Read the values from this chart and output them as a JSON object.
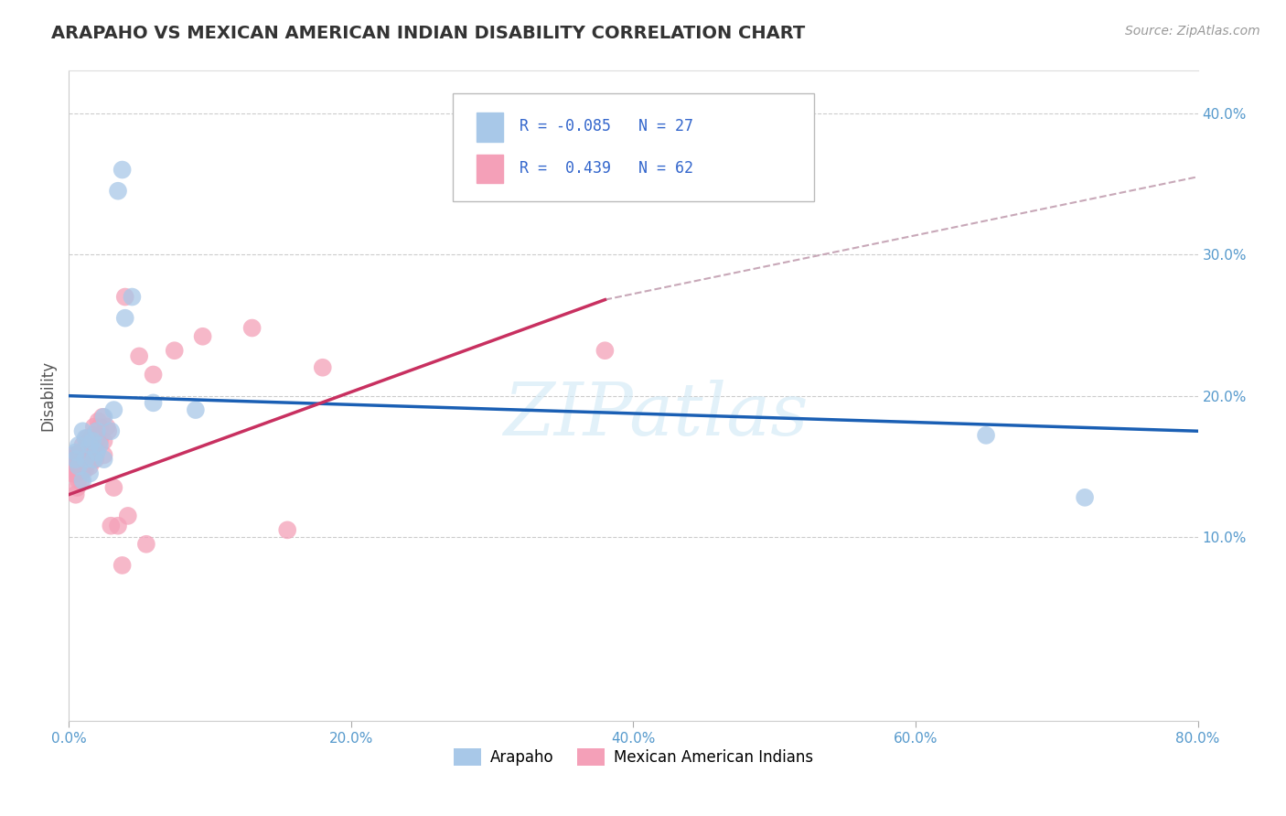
{
  "title": "ARAPAHO VS MEXICAN AMERICAN INDIAN DISABILITY CORRELATION CHART",
  "source_text": "Source: ZipAtlas.com",
  "ylabel": "Disability",
  "xlim": [
    0.0,
    0.8
  ],
  "ylim": [
    -0.03,
    0.43
  ],
  "xticks": [
    0.0,
    0.2,
    0.4,
    0.6,
    0.8
  ],
  "xtick_labels": [
    "0.0%",
    "20.0%",
    "40.0%",
    "60.0%",
    "80.0%"
  ],
  "yticks": [
    0.1,
    0.2,
    0.3,
    0.4
  ],
  "ytick_labels": [
    "10.0%",
    "20.0%",
    "30.0%",
    "40.0%"
  ],
  "background_color": "#ffffff",
  "plot_bg_color": "#ffffff",
  "grid_color": "#cccccc",
  "watermark_text": "ZIPatlas",
  "legend_r1": "R = -0.085",
  "legend_n1": "N = 27",
  "legend_r2": "R =  0.439",
  "legend_n2": "N = 62",
  "arapaho_color": "#a8c8e8",
  "mexican_color": "#f4a0b8",
  "arapaho_line_color": "#1a5fb4",
  "mexican_line_color": "#c83060",
  "dashed_line_color": "#c8a8b8",
  "arapaho_x": [
    0.005,
    0.005,
    0.007,
    0.007,
    0.01,
    0.01,
    0.012,
    0.012,
    0.015,
    0.015,
    0.017,
    0.018,
    0.02,
    0.02,
    0.022,
    0.025,
    0.025,
    0.03,
    0.032,
    0.035,
    0.038,
    0.04,
    0.045,
    0.06,
    0.09,
    0.65,
    0.72
  ],
  "arapaho_y": [
    0.155,
    0.16,
    0.15,
    0.165,
    0.14,
    0.175,
    0.155,
    0.17,
    0.145,
    0.165,
    0.168,
    0.155,
    0.16,
    0.175,
    0.165,
    0.155,
    0.185,
    0.175,
    0.19,
    0.345,
    0.36,
    0.255,
    0.27,
    0.195,
    0.19,
    0.172,
    0.128
  ],
  "mexican_x": [
    0.002,
    0.003,
    0.003,
    0.004,
    0.004,
    0.005,
    0.005,
    0.005,
    0.006,
    0.006,
    0.006,
    0.007,
    0.007,
    0.007,
    0.008,
    0.008,
    0.009,
    0.009,
    0.01,
    0.01,
    0.01,
    0.011,
    0.011,
    0.012,
    0.012,
    0.013,
    0.013,
    0.013,
    0.014,
    0.015,
    0.015,
    0.016,
    0.016,
    0.017,
    0.017,
    0.018,
    0.018,
    0.019,
    0.02,
    0.021,
    0.022,
    0.022,
    0.024,
    0.025,
    0.025,
    0.027,
    0.028,
    0.03,
    0.032,
    0.035,
    0.038,
    0.04,
    0.042,
    0.05,
    0.055,
    0.06,
    0.075,
    0.095,
    0.13,
    0.155,
    0.18,
    0.38
  ],
  "mexican_y": [
    0.145,
    0.148,
    0.155,
    0.145,
    0.158,
    0.13,
    0.148,
    0.155,
    0.135,
    0.145,
    0.158,
    0.14,
    0.15,
    0.158,
    0.148,
    0.16,
    0.14,
    0.155,
    0.148,
    0.158,
    0.165,
    0.148,
    0.16,
    0.148,
    0.162,
    0.152,
    0.165,
    0.17,
    0.162,
    0.15,
    0.168,
    0.155,
    0.17,
    0.158,
    0.172,
    0.165,
    0.178,
    0.155,
    0.17,
    0.182,
    0.168,
    0.178,
    0.185,
    0.158,
    0.168,
    0.178,
    0.175,
    0.108,
    0.135,
    0.108,
    0.08,
    0.27,
    0.115,
    0.228,
    0.095,
    0.215,
    0.232,
    0.242,
    0.248,
    0.105,
    0.22,
    0.232
  ],
  "blue_line_x0": 0.0,
  "blue_line_y0": 0.2,
  "blue_line_x1": 0.8,
  "blue_line_y1": 0.175,
  "pink_line_x0": 0.0,
  "pink_line_y0": 0.13,
  "pink_line_x1": 0.38,
  "pink_line_y1": 0.268,
  "dash_line_x0": 0.38,
  "dash_line_y0": 0.268,
  "dash_line_x1": 0.8,
  "dash_line_y1": 0.355
}
